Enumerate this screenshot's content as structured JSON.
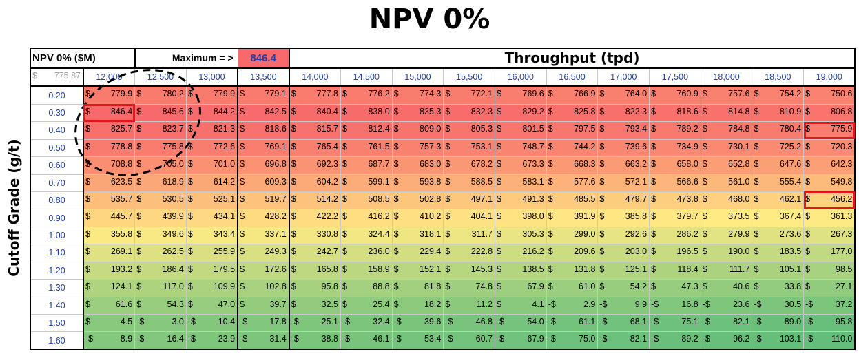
{
  "title": "NPV 0%",
  "y_axis_label": "Cutoff Grade (g/t)",
  "header": {
    "table_label": "NPV 0% ($M)",
    "maximum_label": "Maximum = >",
    "maximum_value": "846.4",
    "throughput_label": "Throughput  (tpd)",
    "corner_currency": "$",
    "corner_value": "775.87"
  },
  "throughputs": [
    "12,000",
    "12,500",
    "13,000",
    "13,500",
    "14,000",
    "14,500",
    "15,000",
    "15,500",
    "16,000",
    "16,500",
    "17,000",
    "17,500",
    "18,000",
    "18,500",
    "19,000"
  ],
  "cutoff_grades": [
    "0.20",
    "0.30",
    "0.40",
    "0.50",
    "0.60",
    "0.70",
    "0.80",
    "0.90",
    "1.00",
    "1.10",
    "1.20",
    "1.30",
    "1.40",
    "1.50",
    "1.60"
  ],
  "values": [
    [
      779.9,
      780.2,
      779.9,
      779.1,
      777.8,
      776.2,
      774.3,
      772.1,
      769.6,
      766.9,
      764.0,
      760.9,
      757.6,
      754.2,
      750.6
    ],
    [
      846.4,
      845.6,
      844.2,
      842.5,
      840.4,
      838.0,
      835.3,
      832.3,
      829.2,
      825.8,
      822.3,
      818.6,
      814.8,
      810.9,
      806.8
    ],
    [
      825.7,
      823.7,
      821.3,
      818.6,
      815.7,
      812.4,
      809.0,
      805.3,
      801.5,
      797.5,
      793.4,
      789.2,
      784.8,
      780.4,
      775.9
    ],
    [
      778.8,
      775.8,
      772.6,
      769.1,
      765.4,
      761.5,
      757.3,
      753.1,
      748.7,
      744.2,
      739.6,
      734.9,
      730.1,
      725.2,
      720.3
    ],
    [
      708.8,
      705.0,
      701.0,
      696.8,
      692.3,
      687.7,
      683.0,
      678.2,
      673.3,
      668.3,
      663.2,
      658.0,
      652.8,
      647.6,
      642.3
    ],
    [
      623.5,
      618.9,
      614.2,
      609.3,
      604.2,
      599.1,
      593.8,
      588.5,
      583.1,
      577.6,
      572.1,
      566.6,
      561.0,
      555.4,
      549.8
    ],
    [
      535.7,
      530.5,
      525.1,
      519.7,
      514.2,
      508.5,
      502.8,
      497.1,
      491.3,
      485.5,
      479.7,
      473.8,
      468.0,
      462.1,
      456.2
    ],
    [
      445.7,
      439.9,
      434.1,
      428.2,
      422.2,
      416.2,
      410.2,
      404.1,
      398.0,
      391.9,
      385.8,
      379.7,
      373.5,
      367.4,
      361.3
    ],
    [
      355.8,
      349.6,
      343.4,
      337.1,
      330.8,
      324.4,
      318.1,
      311.7,
      305.3,
      299.0,
      292.6,
      286.2,
      279.9,
      273.6,
      267.3
    ],
    [
      269.1,
      262.5,
      255.9,
      249.3,
      242.7,
      236.0,
      229.4,
      222.8,
      216.2,
      209.6,
      203.0,
      196.5,
      190.0,
      183.5,
      177.0
    ],
    [
      193.2,
      186.4,
      179.5,
      172.6,
      165.8,
      158.9,
      152.1,
      145.3,
      138.5,
      131.8,
      125.1,
      118.4,
      111.7,
      105.1,
      98.5
    ],
    [
      124.1,
      117.0,
      109.9,
      102.8,
      95.8,
      88.8,
      81.8,
      74.8,
      67.9,
      61.0,
      54.2,
      47.3,
      40.6,
      33.8,
      27.1
    ],
    [
      61.6,
      54.3,
      47.0,
      39.7,
      32.5,
      25.4,
      18.2,
      11.2,
      4.1,
      -2.9,
      -9.9,
      -16.8,
      -23.6,
      -30.5,
      -37.2
    ],
    [
      4.5,
      -3.0,
      -10.4,
      -17.8,
      -25.1,
      -32.4,
      -39.6,
      -46.8,
      -54.0,
      -61.1,
      -68.1,
      -75.1,
      -82.1,
      -89.0,
      -95.8
    ],
    [
      -8.9,
      -16.4,
      -23.9,
      -31.4,
      -38.8,
      -46.1,
      -53.4,
      -60.7,
      -67.9,
      -75.0,
      -82.1,
      -89.2,
      -96.2,
      -103.1,
      -110.0
    ]
  ],
  "highlighted_cells": [
    [
      1,
      0
    ],
    [
      2,
      14
    ],
    [
      6,
      14
    ]
  ],
  "colors": {
    "high": "#f8696b",
    "mid": "#ffeb84",
    "low": "#63be7b",
    "highlight_border": "#e8141c",
    "header_blue": "#1f3fb0"
  }
}
